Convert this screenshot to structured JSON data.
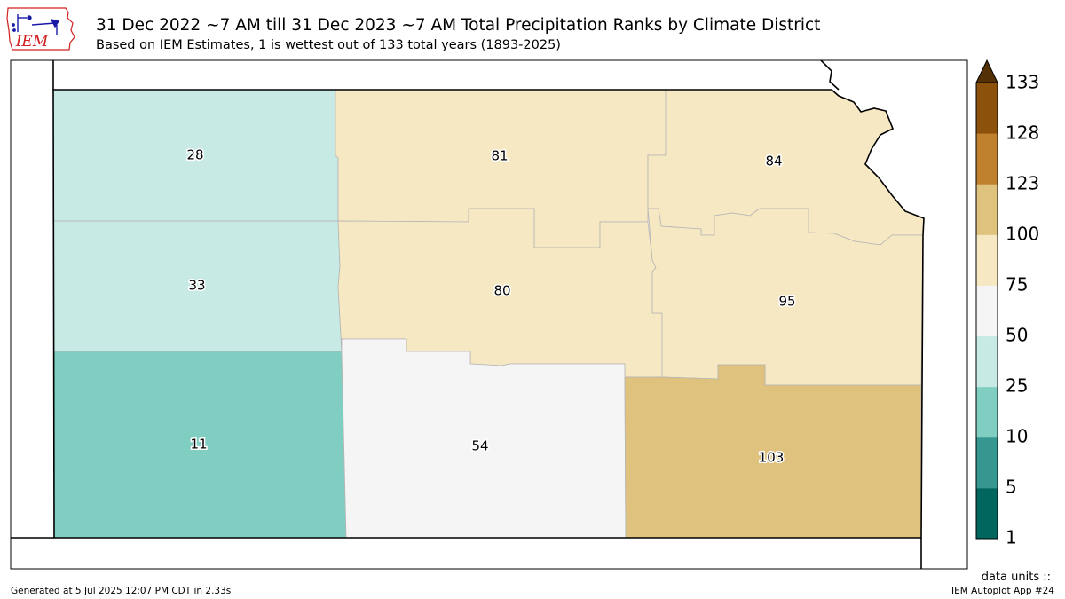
{
  "header": {
    "title": "31 Dec 2022 ~7 AM till 31 Dec 2023 ~7 AM Total Precipitation Ranks by Climate District",
    "subtitle": "Based on IEM Estimates, 1 is wettest out of 133 total years (1893-2025)",
    "logo_text": "IEM"
  },
  "map": {
    "districts": [
      {
        "rank": "28",
        "color": "#c7eae5"
      },
      {
        "rank": "81",
        "color": "#f6e8c3"
      },
      {
        "rank": "84",
        "color": "#f6e8c3"
      },
      {
        "rank": "33",
        "color": "#c7eae5"
      },
      {
        "rank": "80",
        "color": "#f6e8c3"
      },
      {
        "rank": "95",
        "color": "#f6e8c3"
      },
      {
        "rank": "11",
        "color": "#80cdc1"
      },
      {
        "rank": "54",
        "color": "#f5f5f5"
      },
      {
        "rank": "103",
        "color": "#dfc27d"
      }
    ]
  },
  "colorbar": {
    "ticks": [
      "1",
      "5",
      "10",
      "25",
      "50",
      "75",
      "100",
      "123",
      "128",
      "133"
    ],
    "colors": [
      "#01665e",
      "#35978f",
      "#80cdc1",
      "#c7eae5",
      "#f5f5f5",
      "#f6e8c3",
      "#dfc27d",
      "#bf812d",
      "#8c510a"
    ],
    "extend_color": "#543005"
  },
  "footer": {
    "units": "data units ::",
    "generated": "Generated at 5 Jul 2025 12:07 PM CDT in 2.33s",
    "app": "IEM Autoplot App #24"
  }
}
